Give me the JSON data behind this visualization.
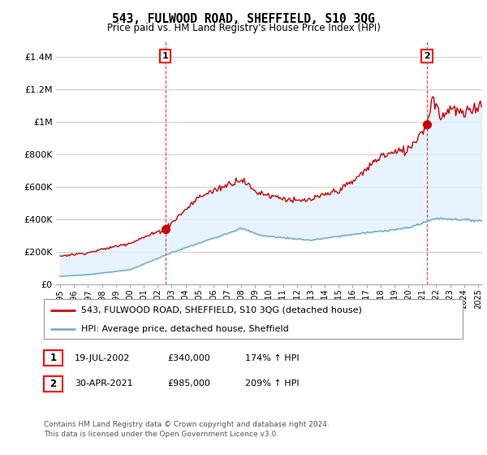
{
  "title": "543, FULWOOD ROAD, SHEFFIELD, S10 3QG",
  "subtitle": "Price paid vs. HM Land Registry's House Price Index (HPI)",
  "ylabel_ticks": [
    "£0",
    "£200K",
    "£400K",
    "£600K",
    "£800K",
    "£1M",
    "£1.2M",
    "£1.4M"
  ],
  "ytick_values": [
    0,
    200000,
    400000,
    600000,
    800000,
    1000000,
    1200000,
    1400000
  ],
  "ylim": [
    0,
    1500000
  ],
  "xlim_start": 1994.7,
  "xlim_end": 2025.3,
  "sale1_date": 2002.54,
  "sale1_price": 340000,
  "sale1_label": "1",
  "sale2_date": 2021.33,
  "sale2_price": 985000,
  "sale2_label": "2",
  "hpi_line_color": "#7bafd4",
  "hpi_fill_color": "#ddeeff",
  "price_line_color": "#cc0000",
  "sale_marker_color": "#cc0000",
  "dashed_line_color": "#cc0000",
  "grid_color": "#cccccc",
  "bg_color": "#ffffff",
  "legend1_label": "543, FULWOOD ROAD, SHEFFIELD, S10 3QG (detached house)",
  "legend2_label": "HPI: Average price, detached house, Sheffield",
  "footer": "Contains HM Land Registry data © Crown copyright and database right 2024.\nThis data is licensed under the Open Government Licence v3.0.",
  "xtick_years": [
    1995,
    1996,
    1997,
    1998,
    1999,
    2000,
    2001,
    2002,
    2003,
    2004,
    2005,
    2006,
    2007,
    2008,
    2009,
    2010,
    2011,
    2012,
    2013,
    2014,
    2015,
    2016,
    2017,
    2018,
    2019,
    2020,
    2021,
    2022,
    2023,
    2024,
    2025
  ]
}
